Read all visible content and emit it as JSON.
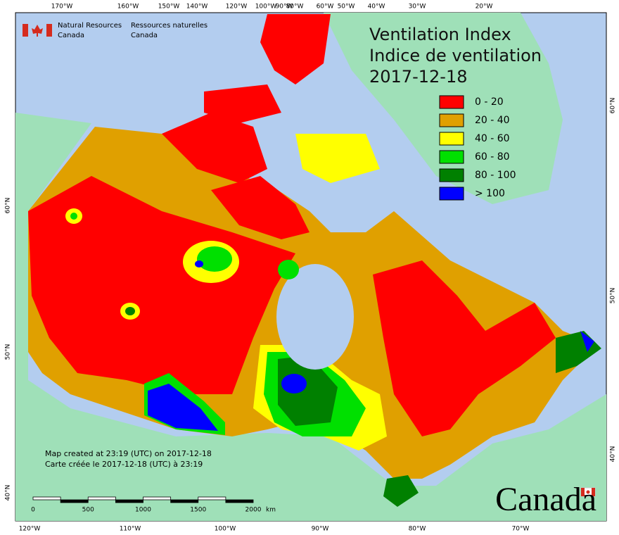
{
  "header": {
    "org_en": [
      "Natural Resources",
      "Canada"
    ],
    "org_fr": [
      "Ressources naturelles",
      "Canada"
    ]
  },
  "title": [
    "Ventilation Index",
    "Indice de ventilation",
    "2017-12-18"
  ],
  "legend": [
    {
      "label": "0 - 20",
      "color": "#ff0000"
    },
    {
      "label": "20 - 40",
      "color": "#e0a000"
    },
    {
      "label": "40 - 60",
      "color": "#ffff00"
    },
    {
      "label": "60 - 80",
      "color": "#00e000"
    },
    {
      "label": "80 - 100",
      "color": "#008000"
    },
    {
      "label": "> 100",
      "color": "#0000ff"
    }
  ],
  "graticule": {
    "top": [
      "170°W",
      "160°W",
      "150°W",
      "140°W",
      "120°W",
      "100°W",
      "90°W",
      "80°W",
      "60°W",
      "50°W",
      "40°W",
      "30°W",
      "20°W"
    ],
    "bottom": [
      "120°W",
      "110°W",
      "100°W",
      "90°W",
      "80°W",
      "70°W"
    ],
    "left": [
      "60°N",
      "50°N",
      "40°N"
    ],
    "right": [
      "60°N",
      "50°N",
      "40°N"
    ]
  },
  "notes": [
    "Map created at 23:19 (UTC) on 2017-12-18",
    "Carte créée le 2017-12-18 (UTC) à 23:19"
  ],
  "scale_bar": {
    "labels": [
      "0",
      "500",
      "1000",
      "1500",
      "2000"
    ],
    "unit": "km"
  },
  "wordmark": "Canada"
}
